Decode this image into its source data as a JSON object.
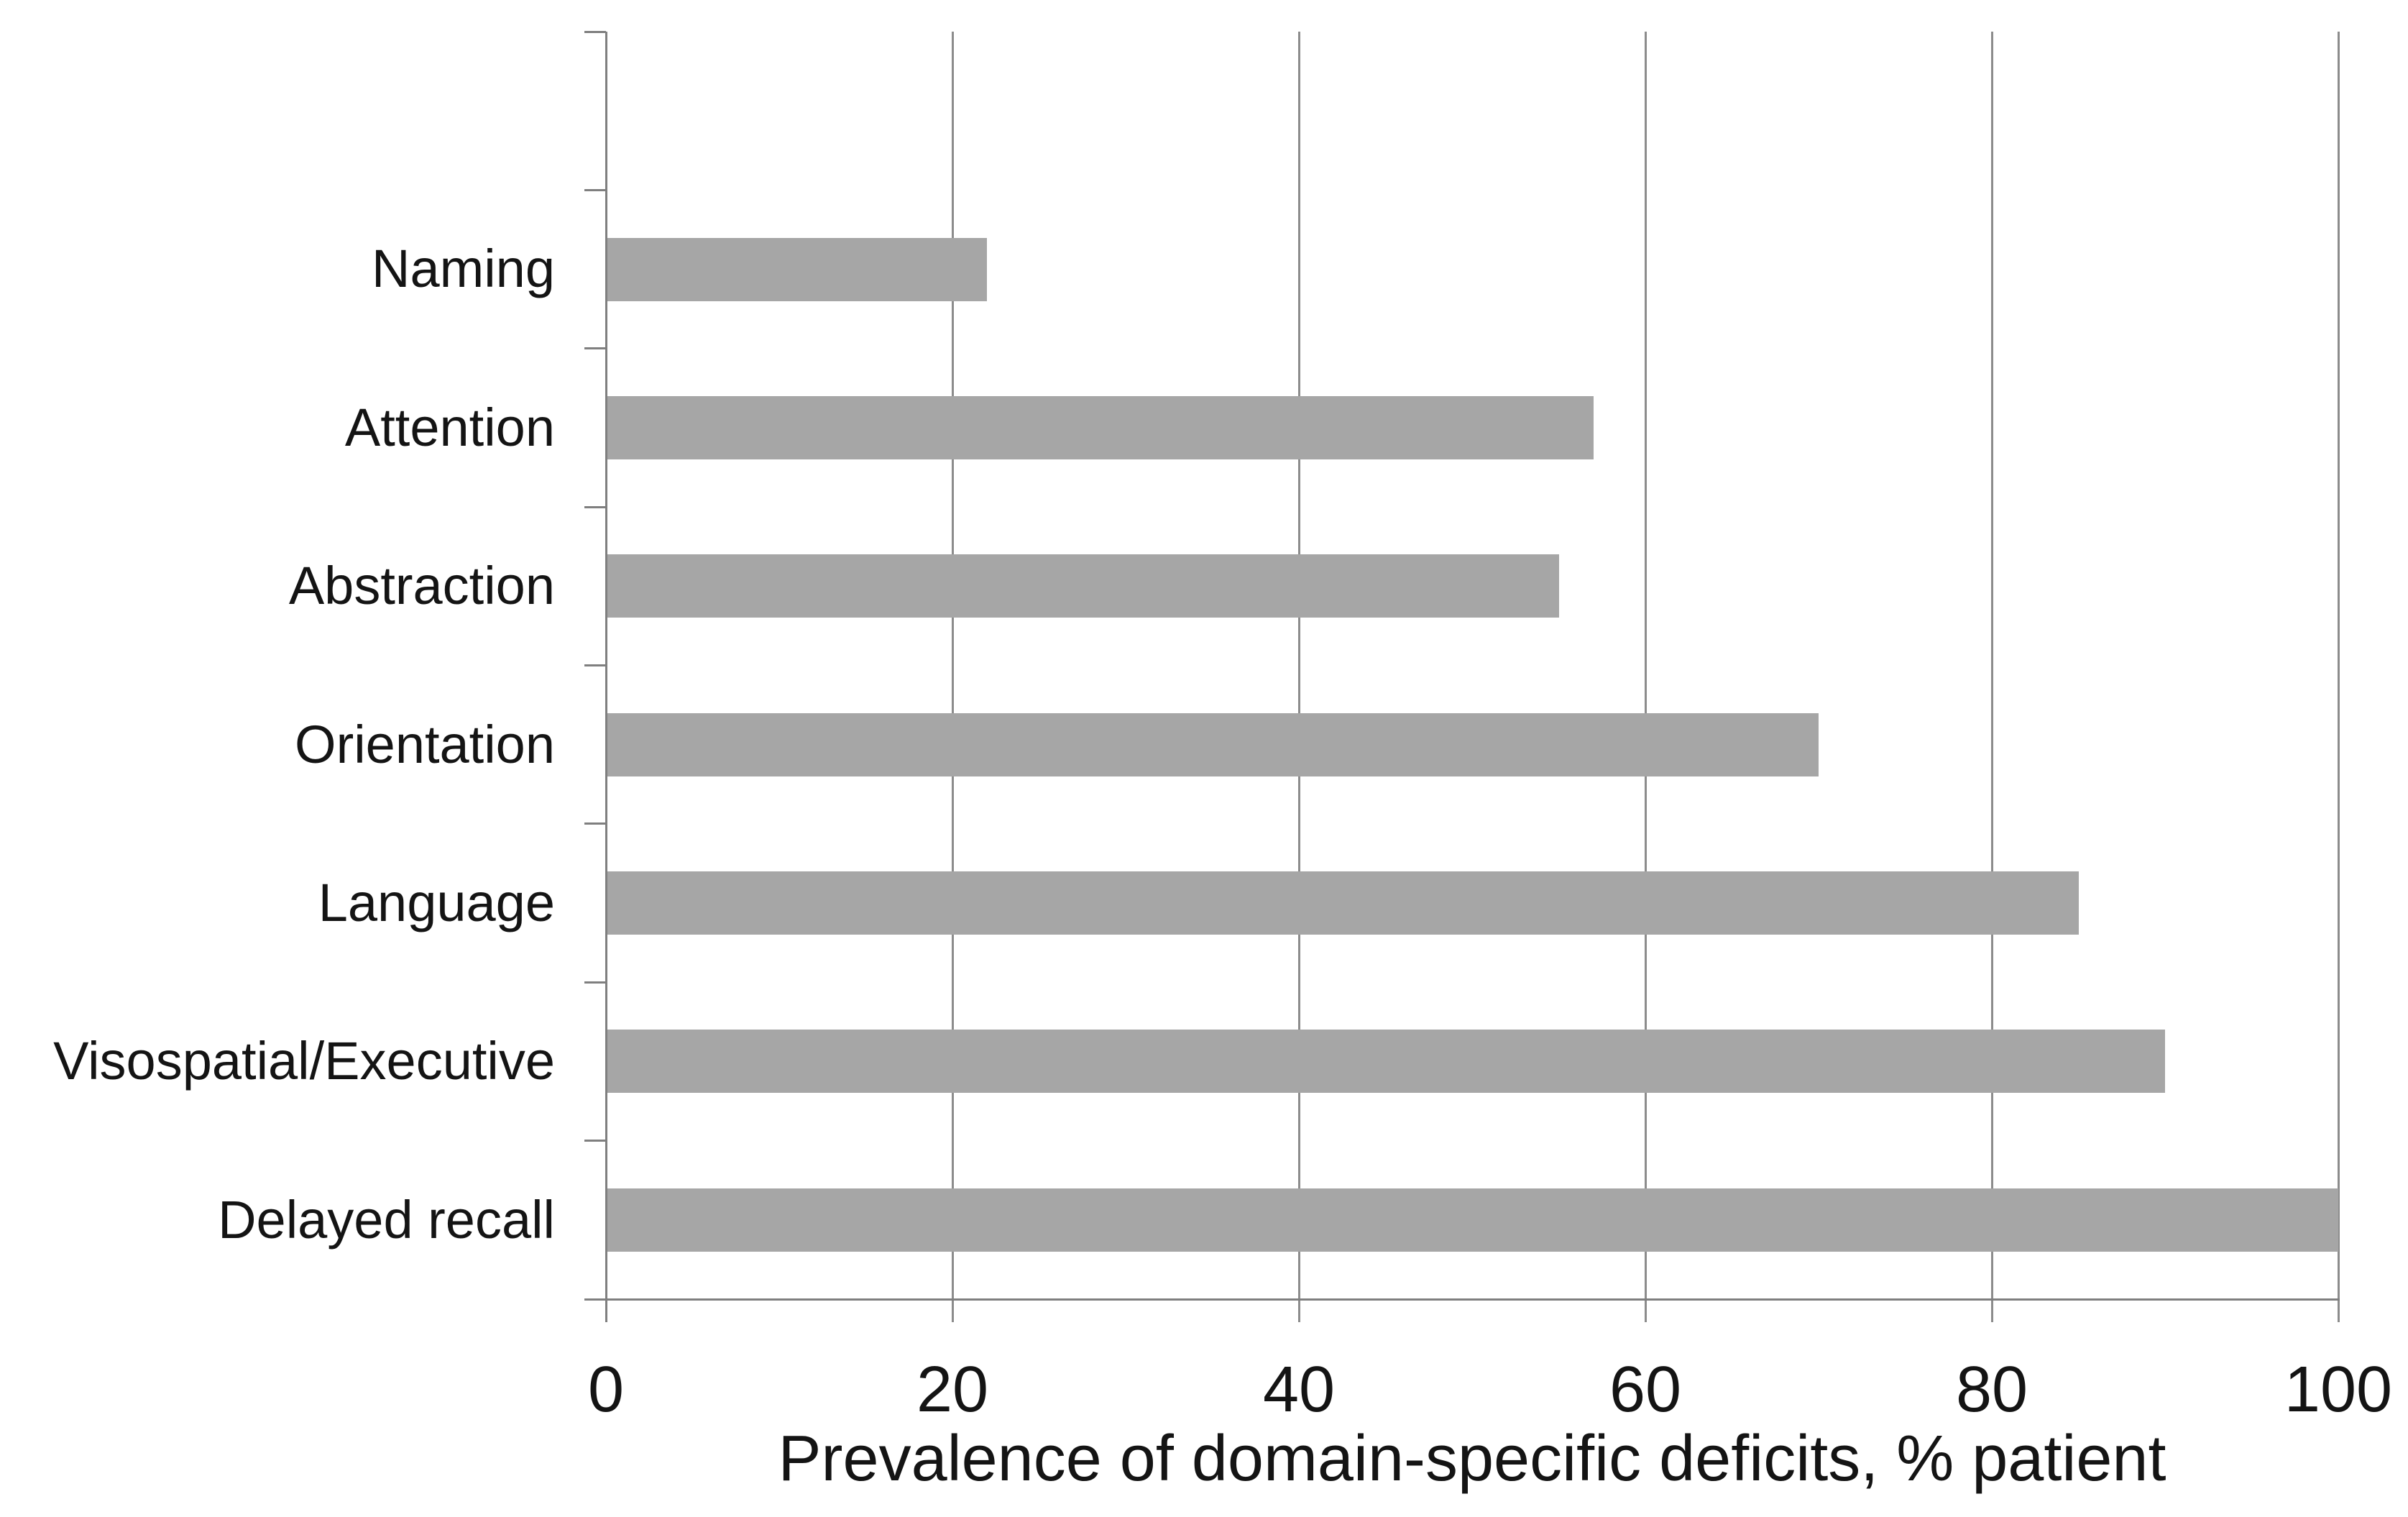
{
  "chart_data": {
    "type": "bar",
    "orientation": "horizontal",
    "title": "",
    "xlabel": "Prevalence of domain-specific deficits, % patient",
    "ylabel": "",
    "categories": [
      "Naming",
      "Attention",
      "Abstraction",
      "Orientation",
      "Language",
      "Visospatial/Executive",
      "Delayed recall"
    ],
    "values": [
      22,
      57,
      55,
      70,
      85,
      90,
      100
    ],
    "xlim": [
      0,
      100
    ],
    "x_ticks": [
      0,
      20,
      40,
      60,
      80,
      100
    ],
    "grid": true,
    "legend": false,
    "empty_top_category_slot": true,
    "colors": {
      "bar": "#a6a6a6",
      "axis": "#7f7f7f",
      "gridline": "#8c8c8c",
      "text": "#141414",
      "background": "#ffffff"
    }
  }
}
